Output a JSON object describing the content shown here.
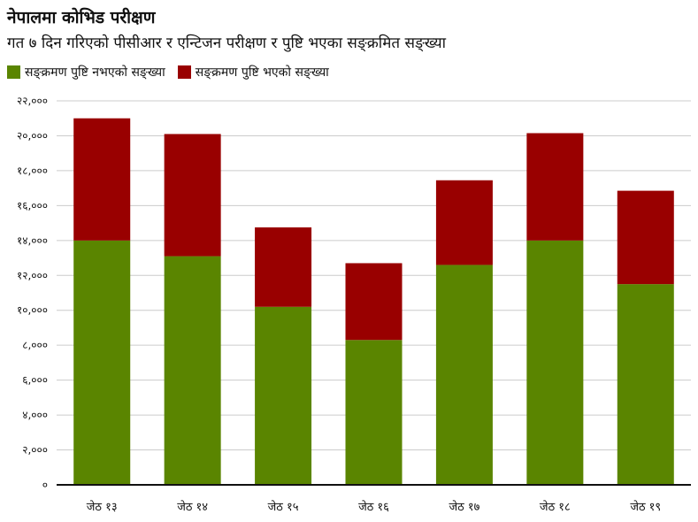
{
  "chart_data": {
    "type": "bar",
    "stacked": true,
    "title": "नेपालमा कोभिड परीक्षण",
    "subtitle": "गत ७ दिन गरिएको पीसीआर र एन्टिजन परीक्षण र पुष्टि भएका सङ्क्रमित सङ्ख्या",
    "categories": [
      "जेठ १३",
      "जेठ १४",
      "जेठ १५",
      "जेठ १६",
      "जेठ १७",
      "जेठ १८",
      "जेठ १९"
    ],
    "series": [
      {
        "name": "सङ्क्रमण पुष्टि नभएको सङ्ख्या",
        "color": "#5a8500",
        "values": [
          14000,
          13100,
          10200,
          8300,
          12600,
          14000,
          11500
        ]
      },
      {
        "name": "सङ्क्रमण पुष्टि भएको सङ्ख्या",
        "color": "#990000",
        "values": [
          7000,
          7000,
          4550,
          4400,
          4850,
          6150,
          5350
        ]
      }
    ],
    "ylim": [
      0,
      22000
    ],
    "yticks": [
      0,
      2000,
      4000,
      6000,
      8000,
      10000,
      12000,
      14000,
      16000,
      18000,
      20000,
      22000
    ],
    "ytick_labels": [
      "०",
      "२,०००",
      "४,०००",
      "६,०००",
      "८,०००",
      "१०,०००",
      "१२,०००",
      "१४,०००",
      "१६,०००",
      "१८,०००",
      "२०,०००",
      "२२,०००"
    ],
    "xlabel": "",
    "ylabel": "",
    "grid": true,
    "legend_position": "top-left"
  }
}
